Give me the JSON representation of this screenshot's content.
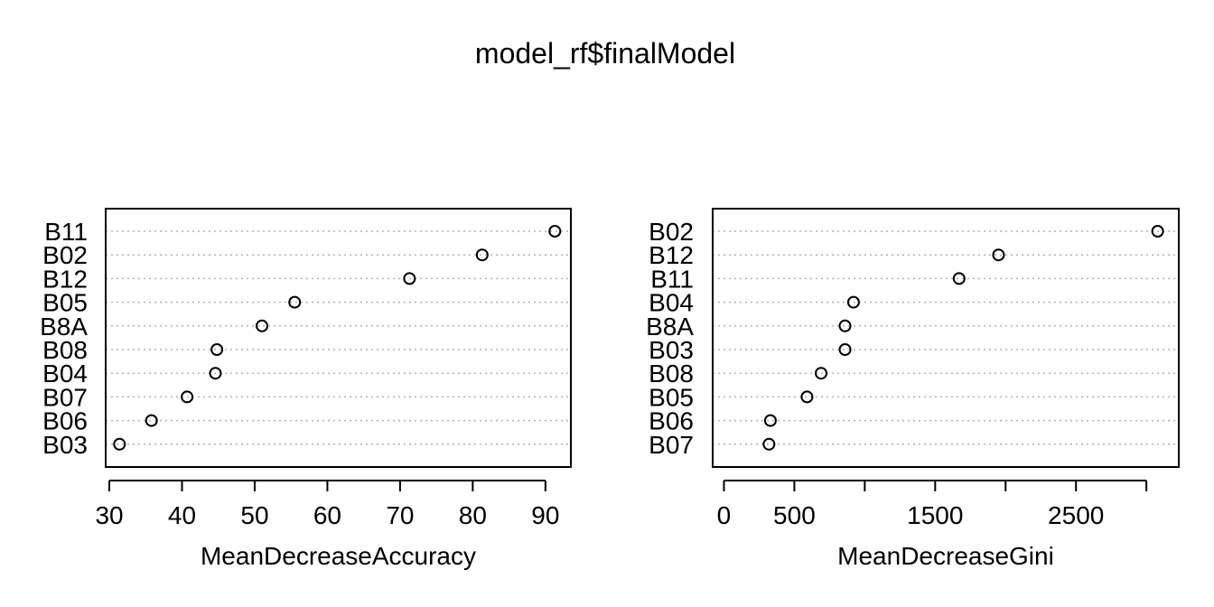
{
  "title": "model_rf$finalModel",
  "chart_data": [
    {
      "type": "scatter",
      "subtype": "dotchart",
      "xlabel": "MeanDecreaseAccuracy",
      "xlim": [
        29.5,
        93.5
      ],
      "xticks": [
        30,
        40,
        50,
        60,
        70,
        80,
        90
      ],
      "xtick_labels": [
        "30",
        "40",
        "50",
        "60",
        "70",
        "80",
        "90"
      ],
      "grid": "dotted horizontal",
      "categories": [
        "B11",
        "B02",
        "B12",
        "B05",
        "B8A",
        "B08",
        "B04",
        "B07",
        "B06",
        "B03"
      ],
      "values": [
        91.3,
        81.3,
        71.3,
        55.5,
        51.0,
        44.8,
        44.6,
        40.7,
        35.8,
        31.4
      ]
    },
    {
      "type": "scatter",
      "subtype": "dotchart",
      "xlabel": "MeanDecreaseGini",
      "xlim": [
        -80,
        3230
      ],
      "xticks": [
        0,
        500,
        1000,
        1500,
        2000,
        2500,
        3000
      ],
      "xtick_labels": [
        "0",
        "500",
        "",
        "1500",
        "",
        "2500",
        ""
      ],
      "grid": "dotted horizontal",
      "categories": [
        "B02",
        "B12",
        "B11",
        "B04",
        "B8A",
        "B03",
        "B08",
        "B05",
        "B06",
        "B07"
      ],
      "values": [
        3080,
        1950,
        1670,
        920,
        860,
        860,
        690,
        590,
        330,
        320
      ]
    }
  ]
}
